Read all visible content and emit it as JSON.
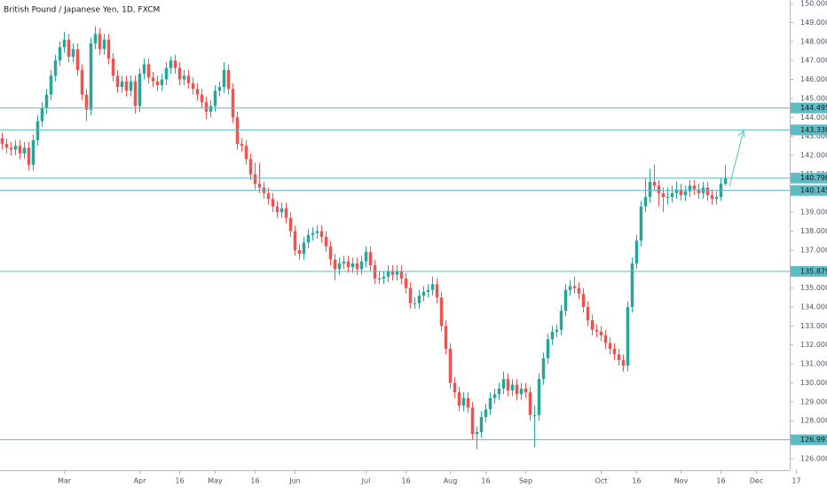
{
  "chart_data": {
    "type": "candlestick",
    "title": "British Pound / Japanese Yen, 1D, FXCM",
    "up_color": "#26a69a",
    "down_color": "#ef5350",
    "level_color": "#5bbcc4",
    "grid": false,
    "ylim": [
      125.39,
      150.19
    ],
    "yticks": [
      {
        "value": 150,
        "label": "150.000"
      },
      {
        "value": 149,
        "label": "149.000"
      },
      {
        "value": 148,
        "label": "148.000"
      },
      {
        "value": 147,
        "label": "147.000"
      },
      {
        "value": 146,
        "label": "146.000"
      },
      {
        "value": 145,
        "label": "145.000"
      },
      {
        "value": 144,
        "label": "144.000"
      },
      {
        "value": 143,
        "label": "143.000"
      },
      {
        "value": 142,
        "label": "142.000"
      },
      {
        "value": 141,
        "label": "141.000"
      },
      {
        "value": 140,
        "label": "140.000"
      },
      {
        "value": 139,
        "label": "139.000"
      },
      {
        "value": 138,
        "label": "138.000"
      },
      {
        "value": 137,
        "label": "137.000"
      },
      {
        "value": 136,
        "label": "136.000"
      },
      {
        "value": 135,
        "label": "135.000"
      },
      {
        "value": 134,
        "label": "134.000"
      },
      {
        "value": 133,
        "label": "133.000"
      },
      {
        "value": 132,
        "label": "132.000"
      },
      {
        "value": 131,
        "label": "131.000"
      },
      {
        "value": 130,
        "label": "130.000"
      },
      {
        "value": 129,
        "label": "129.000"
      },
      {
        "value": 128,
        "label": "128.000"
      },
      {
        "value": 127,
        "label": "127.000"
      },
      {
        "value": 126,
        "label": "126.000"
      }
    ],
    "xlim": [
      -0.5,
      178.5
    ],
    "xticks": [
      {
        "value": 14,
        "label": "Mar"
      },
      {
        "value": 31,
        "label": "Apr"
      },
      {
        "value": 40,
        "label": "16"
      },
      {
        "value": 48,
        "label": "May"
      },
      {
        "value": 57,
        "label": "16"
      },
      {
        "value": 66,
        "label": "Jun"
      },
      {
        "value": 82,
        "label": "Jul"
      },
      {
        "value": 91,
        "label": "16"
      },
      {
        "value": 101,
        "label": "Aug"
      },
      {
        "value": 109,
        "label": "16"
      },
      {
        "value": 118,
        "label": "Sep"
      },
      {
        "value": 135,
        "label": "Oct"
      },
      {
        "value": 143,
        "label": "16"
      },
      {
        "value": 153,
        "label": "Nov"
      },
      {
        "value": 162,
        "label": "16"
      },
      {
        "value": 170,
        "label": "Dec"
      },
      {
        "value": 179,
        "label": "17"
      }
    ],
    "levels": [
      144.495,
      143.338,
      140.798,
      140.145,
      135.879,
      126.997
    ],
    "candles": [
      [
        142.9,
        143.2,
        142.3,
        142.6
      ],
      [
        142.6,
        142.9,
        142.1,
        142.4
      ],
      [
        142.4,
        142.7,
        142.0,
        142.3
      ],
      [
        142.3,
        142.8,
        142.0,
        142.5
      ],
      [
        142.5,
        142.8,
        141.8,
        142.1
      ],
      [
        142.1,
        142.7,
        141.8,
        142.4
      ],
      [
        142.4,
        142.7,
        141.2,
        141.5
      ],
      [
        141.5,
        143.1,
        141.2,
        142.8
      ],
      [
        142.8,
        144.1,
        142.5,
        143.8
      ],
      [
        143.8,
        144.8,
        143.5,
        144.5
      ],
      [
        144.5,
        145.5,
        144.2,
        145.2
      ],
      [
        145.2,
        146.5,
        144.9,
        146.2
      ],
      [
        146.2,
        147.3,
        145.9,
        147.0
      ],
      [
        147.0,
        148.0,
        146.7,
        147.7
      ],
      [
        147.7,
        148.5,
        147.4,
        148.1
      ],
      [
        148.1,
        148.4,
        146.9,
        147.2
      ],
      [
        147.2,
        147.9,
        146.9,
        147.6
      ],
      [
        147.6,
        147.9,
        146.2,
        146.5
      ],
      [
        146.5,
        146.8,
        144.9,
        145.2
      ],
      [
        145.2,
        145.5,
        143.8,
        144.4
      ],
      [
        144.4,
        148.2,
        144.1,
        147.9
      ],
      [
        147.9,
        148.8,
        147.6,
        148.4
      ],
      [
        148.4,
        148.7,
        147.3,
        147.6
      ],
      [
        147.6,
        148.4,
        147.3,
        148.1
      ],
      [
        148.1,
        148.4,
        146.8,
        147.1
      ],
      [
        147.1,
        147.4,
        145.9,
        146.2
      ],
      [
        146.2,
        146.5,
        145.3,
        145.6
      ],
      [
        145.6,
        146.2,
        145.3,
        145.9
      ],
      [
        145.9,
        146.2,
        145.1,
        145.4
      ],
      [
        145.4,
        146.2,
        145.1,
        145.9
      ],
      [
        145.9,
        146.2,
        144.2,
        144.6
      ],
      [
        144.6,
        146.6,
        144.3,
        146.3
      ],
      [
        146.3,
        147.1,
        146.0,
        146.8
      ],
      [
        146.8,
        147.1,
        145.8,
        146.1
      ],
      [
        146.1,
        146.4,
        145.6,
        145.9
      ],
      [
        145.9,
        146.2,
        145.4,
        145.7
      ],
      [
        145.7,
        146.3,
        145.4,
        146.0
      ],
      [
        146.0,
        146.9,
        145.7,
        146.6
      ],
      [
        146.6,
        147.2,
        146.3,
        147.0
      ],
      [
        147.0,
        147.3,
        146.3,
        146.6
      ],
      [
        146.6,
        146.9,
        145.7,
        146.0
      ],
      [
        146.0,
        146.5,
        145.7,
        146.2
      ],
      [
        146.2,
        146.5,
        145.5,
        145.8
      ],
      [
        145.8,
        146.1,
        145.2,
        145.5
      ],
      [
        145.5,
        145.8,
        144.9,
        145.2
      ],
      [
        145.2,
        145.5,
        144.5,
        144.8
      ],
      [
        144.8,
        145.1,
        143.9,
        144.3
      ],
      [
        144.3,
        144.9,
        144.0,
        144.6
      ],
      [
        144.6,
        145.7,
        144.3,
        145.4
      ],
      [
        145.4,
        145.9,
        145.1,
        145.6
      ],
      [
        145.6,
        146.9,
        145.3,
        146.5
      ],
      [
        146.5,
        146.8,
        145.2,
        145.5
      ],
      [
        145.5,
        145.8,
        143.7,
        144.0
      ],
      [
        144.0,
        144.3,
        142.3,
        142.6
      ],
      [
        142.6,
        142.9,
        142.2,
        142.5
      ],
      [
        142.5,
        142.8,
        141.5,
        141.8
      ],
      [
        141.8,
        142.1,
        140.7,
        141.0
      ],
      [
        141.0,
        141.6,
        140.2,
        140.5
      ],
      [
        140.5,
        141.6,
        140.0,
        140.3
      ],
      [
        140.3,
        140.6,
        139.7,
        140.0
      ],
      [
        140.0,
        140.3,
        139.4,
        139.7
      ],
      [
        139.7,
        140.0,
        139.0,
        139.3
      ],
      [
        139.3,
        139.6,
        138.7,
        139.0
      ],
      [
        139.0,
        139.5,
        138.7,
        139.2
      ],
      [
        139.2,
        139.5,
        138.4,
        138.7
      ],
      [
        138.7,
        139.0,
        137.7,
        138.0
      ],
      [
        138.0,
        138.3,
        136.7,
        137.0
      ],
      [
        137.0,
        137.3,
        136.5,
        136.8
      ],
      [
        136.8,
        137.7,
        136.5,
        137.4
      ],
      [
        137.4,
        138.1,
        137.1,
        137.8
      ],
      [
        137.8,
        138.2,
        137.5,
        137.9
      ],
      [
        137.9,
        138.3,
        137.6,
        138.0
      ],
      [
        138.0,
        138.3,
        137.4,
        137.7
      ],
      [
        137.7,
        138.0,
        136.9,
        137.2
      ],
      [
        137.2,
        137.5,
        136.2,
        136.5
      ],
      [
        136.5,
        136.8,
        135.4,
        136.0
      ],
      [
        136.0,
        136.6,
        135.7,
        136.3
      ],
      [
        136.3,
        136.7,
        136.0,
        136.4
      ],
      [
        136.4,
        136.7,
        135.8,
        136.1
      ],
      [
        136.1,
        136.6,
        135.8,
        136.3
      ],
      [
        136.3,
        136.6,
        135.7,
        136.0
      ],
      [
        136.0,
        136.7,
        135.7,
        136.4
      ],
      [
        136.4,
        137.2,
        136.1,
        136.9
      ],
      [
        136.9,
        137.2,
        135.9,
        136.2
      ],
      [
        136.2,
        136.5,
        135.2,
        135.5
      ],
      [
        135.5,
        135.9,
        135.2,
        135.5
      ],
      [
        135.5,
        135.9,
        135.2,
        135.6
      ],
      [
        135.6,
        136.2,
        135.3,
        135.9
      ],
      [
        135.9,
        136.2,
        135.4,
        135.7
      ],
      [
        135.7,
        136.2,
        135.4,
        135.9
      ],
      [
        135.9,
        136.2,
        135.2,
        135.5
      ],
      [
        135.5,
        135.8,
        134.7,
        135.0
      ],
      [
        135.0,
        135.3,
        133.9,
        134.2
      ],
      [
        134.2,
        134.5,
        133.9,
        134.2
      ],
      [
        134.2,
        134.9,
        133.9,
        134.6
      ],
      [
        134.6,
        135.1,
        134.3,
        134.8
      ],
      [
        134.8,
        135.2,
        134.5,
        134.9
      ],
      [
        134.9,
        135.6,
        134.6,
        135.2
      ],
      [
        135.2,
        135.5,
        134.2,
        134.5
      ],
      [
        134.5,
        134.8,
        132.7,
        133.0
      ],
      [
        133.0,
        133.3,
        131.5,
        131.8
      ],
      [
        131.8,
        132.1,
        129.7,
        130.0
      ],
      [
        130.0,
        130.3,
        129.2,
        129.5
      ],
      [
        129.5,
        129.8,
        128.5,
        128.8
      ],
      [
        128.8,
        129.5,
        128.5,
        129.2
      ],
      [
        129.2,
        129.5,
        128.4,
        128.7
      ],
      [
        128.7,
        129.0,
        127.0,
        127.3
      ],
      [
        127.3,
        127.7,
        126.5,
        127.4
      ],
      [
        127.4,
        128.5,
        127.1,
        128.2
      ],
      [
        128.2,
        128.9,
        127.9,
        128.6
      ],
      [
        128.6,
        129.5,
        128.3,
        129.2
      ],
      [
        129.2,
        129.7,
        128.9,
        129.4
      ],
      [
        129.4,
        130.0,
        129.1,
        129.7
      ],
      [
        129.7,
        130.6,
        129.4,
        130.2
      ],
      [
        130.2,
        130.5,
        129.3,
        129.6
      ],
      [
        129.6,
        130.2,
        129.3,
        129.9
      ],
      [
        129.9,
        130.2,
        129.1,
        129.4
      ],
      [
        129.4,
        130.0,
        129.1,
        129.7
      ],
      [
        129.7,
        130.0,
        129.2,
        129.5
      ],
      [
        129.5,
        129.8,
        128.0,
        128.3
      ],
      [
        128.3,
        128.8,
        126.6,
        128.3
      ],
      [
        128.3,
        130.5,
        128.0,
        130.2
      ],
      [
        130.2,
        131.6,
        129.9,
        131.3
      ],
      [
        131.3,
        132.6,
        131.0,
        132.3
      ],
      [
        132.3,
        133.0,
        132.0,
        132.7
      ],
      [
        132.7,
        133.1,
        132.4,
        132.8
      ],
      [
        132.8,
        134.1,
        132.5,
        133.8
      ],
      [
        133.8,
        135.2,
        133.5,
        134.9
      ],
      [
        134.9,
        135.4,
        134.6,
        135.1
      ],
      [
        135.1,
        135.6,
        134.7,
        135.0
      ],
      [
        135.0,
        135.3,
        134.4,
        134.7
      ],
      [
        134.7,
        135.0,
        133.7,
        134.0
      ],
      [
        134.0,
        134.3,
        133.0,
        133.3
      ],
      [
        133.3,
        133.6,
        132.5,
        132.8
      ],
      [
        132.8,
        133.1,
        132.4,
        132.7
      ],
      [
        132.7,
        133.0,
        132.2,
        132.5
      ],
      [
        132.5,
        132.8,
        131.8,
        132.1
      ],
      [
        132.1,
        132.4,
        131.5,
        131.8
      ],
      [
        131.8,
        132.1,
        131.2,
        131.5
      ],
      [
        131.5,
        131.8,
        130.9,
        131.2
      ],
      [
        131.2,
        131.5,
        130.6,
        130.9
      ],
      [
        130.9,
        134.3,
        130.6,
        134.0
      ],
      [
        134.0,
        136.6,
        133.7,
        136.3
      ],
      [
        136.3,
        137.8,
        136.0,
        137.5
      ],
      [
        137.5,
        139.6,
        137.2,
        139.3
      ],
      [
        139.3,
        140.8,
        139.0,
        139.8
      ],
      [
        139.8,
        141.3,
        139.5,
        140.6
      ],
      [
        140.6,
        141.5,
        140.1,
        140.4
      ],
      [
        140.4,
        140.7,
        139.3,
        140.0
      ],
      [
        140.0,
        140.3,
        139.0,
        139.8
      ],
      [
        139.8,
        140.3,
        139.4,
        139.8
      ],
      [
        139.8,
        140.4,
        139.5,
        140.0
      ],
      [
        140.0,
        140.6,
        139.7,
        140.2
      ],
      [
        140.2,
        140.5,
        139.6,
        139.9
      ],
      [
        139.9,
        140.4,
        139.6,
        140.1
      ],
      [
        140.1,
        140.7,
        139.8,
        140.4
      ],
      [
        140.4,
        140.7,
        139.9,
        140.2
      ],
      [
        140.2,
        140.5,
        139.7,
        140.0
      ],
      [
        140.0,
        140.6,
        139.7,
        140.3
      ],
      [
        140.3,
        140.6,
        139.6,
        139.9
      ],
      [
        139.9,
        140.2,
        139.4,
        139.7
      ],
      [
        139.7,
        140.1,
        139.4,
        139.8
      ],
      [
        139.8,
        140.8,
        139.6,
        140.5
      ],
      [
        140.5,
        141.5,
        140.4,
        140.8
      ]
    ]
  }
}
